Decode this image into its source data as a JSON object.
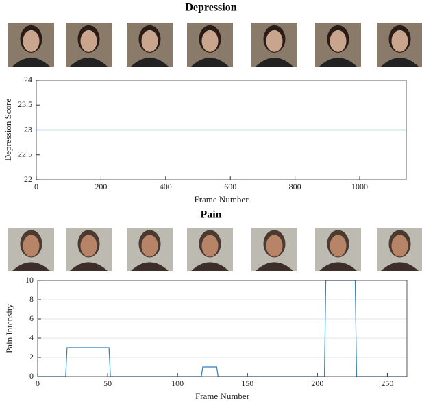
{
  "chart_data": [
    {
      "type": "line",
      "title": "Depression",
      "xlabel": "Frame Number",
      "ylabel": "Depression Score",
      "x": [
        0,
        1144
      ],
      "values": [
        23,
        23
      ],
      "color": "#1b6f80",
      "xlim": [
        0,
        1144
      ],
      "xticks": [
        0,
        200,
        400,
        600,
        800,
        1000
      ],
      "ylim": [
        22,
        24
      ],
      "yticks": [
        22,
        22.5,
        23,
        23.5,
        24
      ],
      "grid": false
    },
    {
      "type": "line",
      "title": "Pain",
      "xlabel": "Frame Number",
      "ylabel": "Pain Intensity",
      "x": [
        0,
        20,
        21,
        51,
        52,
        117,
        118,
        128,
        129,
        205,
        206,
        227,
        228,
        264
      ],
      "values": [
        0,
        0,
        3,
        3,
        0,
        0,
        1,
        1,
        0,
        0,
        10,
        10,
        0,
        0
      ],
      "color": "#2f7fc1",
      "xlim": [
        0,
        264
      ],
      "xticks": [
        0,
        50,
        100,
        150,
        200,
        250
      ],
      "ylim": [
        0,
        10
      ],
      "yticks": [
        0,
        2,
        4,
        6,
        8,
        10
      ],
      "grid": true
    }
  ]
}
